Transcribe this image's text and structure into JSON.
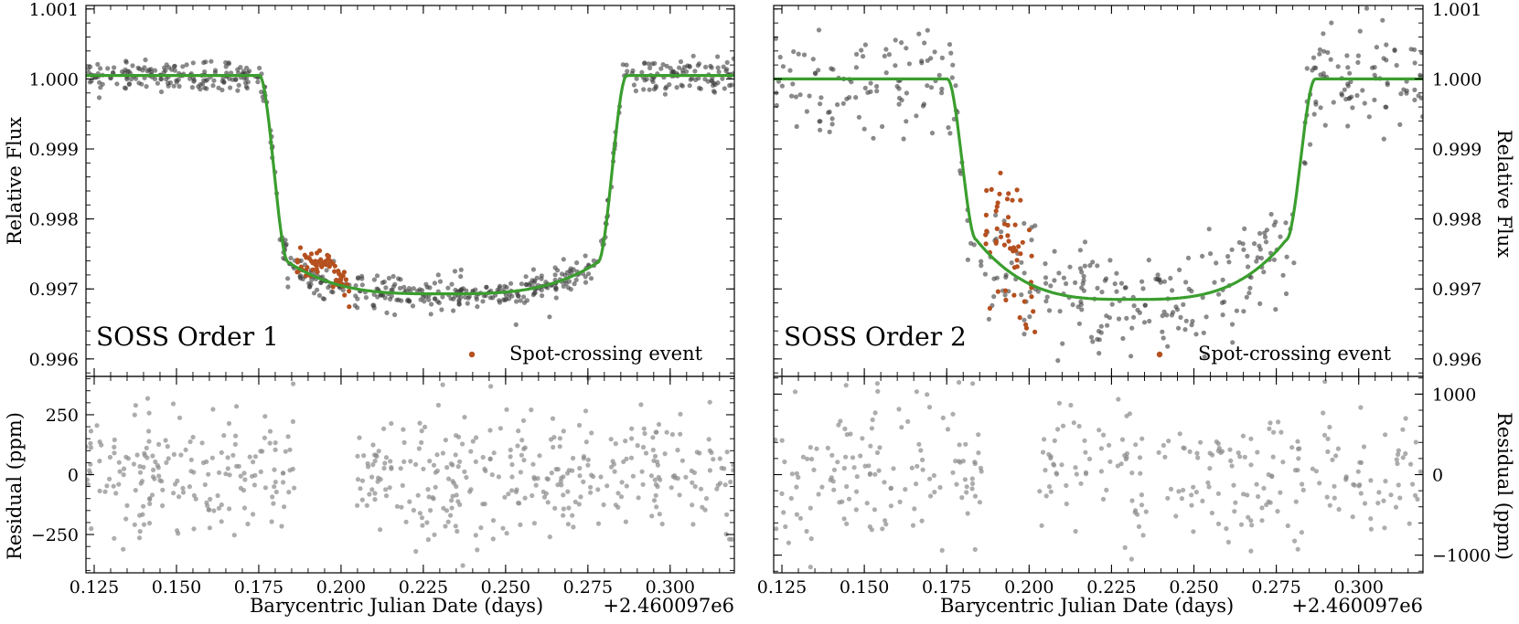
{
  "colors": {
    "model": "#3a9e2e",
    "data": "#3c3c3c",
    "residual": "#8a8a8a",
    "spot": "#b5501f"
  },
  "chart_data": [
    {
      "type": "scatter",
      "panel": "order1_flux",
      "title": "SOSS Order 1",
      "legend_label": "Spot-crossing event",
      "ylabel": "Relative Flux",
      "xlim": [
        0.1225,
        0.3195
      ],
      "ylim": [
        0.99575,
        1.00105
      ],
      "yticks": [
        0.996,
        0.997,
        0.998,
        0.999,
        1.0,
        1.001
      ],
      "ytick_labels": [
        "0.996",
        "0.997",
        "0.998",
        "0.999",
        "1.000",
        "1.001"
      ],
      "model": {
        "baseline": 1.00005,
        "depth": 0.99693,
        "t_ingress_start": 0.1752,
        "t_ingress_end": 0.184,
        "t_egress_start": 0.278,
        "t_egress_end": 0.2868,
        "limb": 0.00045,
        "slope_curve": 0.0
      },
      "scatter_noise": 0.000115,
      "n_points": 620,
      "gap": [
        0.186,
        0.203
      ],
      "spot": {
        "t_start": 0.1865,
        "t_end": 0.2025,
        "n": 65,
        "offset_max": 0.00045,
        "noise": 0.00013
      }
    },
    {
      "type": "scatter",
      "panel": "order1_residual",
      "ylabel": "Residual (ppm)",
      "xlim": [
        0.1225,
        0.3195
      ],
      "ylim": [
        -410,
        410
      ],
      "yticks": [
        -250,
        0,
        250
      ],
      "ytick_labels": [
        "−250",
        "0",
        "250"
      ],
      "noise": 130,
      "n_points": 560,
      "gap": [
        0.186,
        0.203
      ],
      "xticks": [
        0.125,
        0.15,
        0.175,
        0.2,
        0.225,
        0.25,
        0.275,
        0.3
      ],
      "xtick_labels": [
        "0.125",
        "0.150",
        "0.175",
        "0.200",
        "0.225",
        "0.250",
        "0.275",
        "0.300"
      ],
      "xlabel": "Barycentric Julian Date (days)",
      "offset_label": "+2.460097e6"
    },
    {
      "type": "scatter",
      "panel": "order2_flux",
      "title": "SOSS Order 2",
      "legend_label": "Spot-crossing event",
      "ylabel": "Relative Flux",
      "xlim": [
        0.1225,
        0.3195
      ],
      "ylim": [
        0.99575,
        1.00105
      ],
      "yticks": [
        0.996,
        0.997,
        0.998,
        0.999,
        1.0,
        1.001
      ],
      "ytick_labels": [
        "0.996",
        "0.997",
        "0.998",
        "0.999",
        "1.000",
        "1.001"
      ],
      "model": {
        "baseline": 1.0,
        "depth": 0.99685,
        "t_ingress_start": 0.1752,
        "t_ingress_end": 0.184,
        "t_egress_start": 0.278,
        "t_egress_end": 0.2868,
        "limb": 0.00085,
        "slope_curve": 0.0
      },
      "scatter_noise": 0.00042,
      "n_points": 420,
      "gap": [
        0.186,
        0.203
      ],
      "spot": {
        "t_start": 0.1865,
        "t_end": 0.2025,
        "n": 55,
        "offset_max": 0.0009,
        "noise": 0.00045
      }
    },
    {
      "type": "scatter",
      "panel": "order2_residual",
      "ylabel": "Residual (ppm)",
      "xlim": [
        0.1225,
        0.3195
      ],
      "ylim": [
        -1220,
        1220
      ],
      "yticks": [
        -1000,
        0,
        1000
      ],
      "ytick_labels": [
        "−1000",
        "0",
        "1000"
      ],
      "noise": 430,
      "n_points": 400,
      "gap": [
        0.186,
        0.203
      ],
      "xticks": [
        0.125,
        0.15,
        0.175,
        0.2,
        0.225,
        0.25,
        0.275,
        0.3
      ],
      "xtick_labels": [
        "0.125",
        "0.150",
        "0.175",
        "0.200",
        "0.225",
        "0.250",
        "0.275",
        "0.300"
      ],
      "xlabel": "Barycentric Julian Date (days)",
      "offset_label": "+2.460097e6"
    }
  ]
}
